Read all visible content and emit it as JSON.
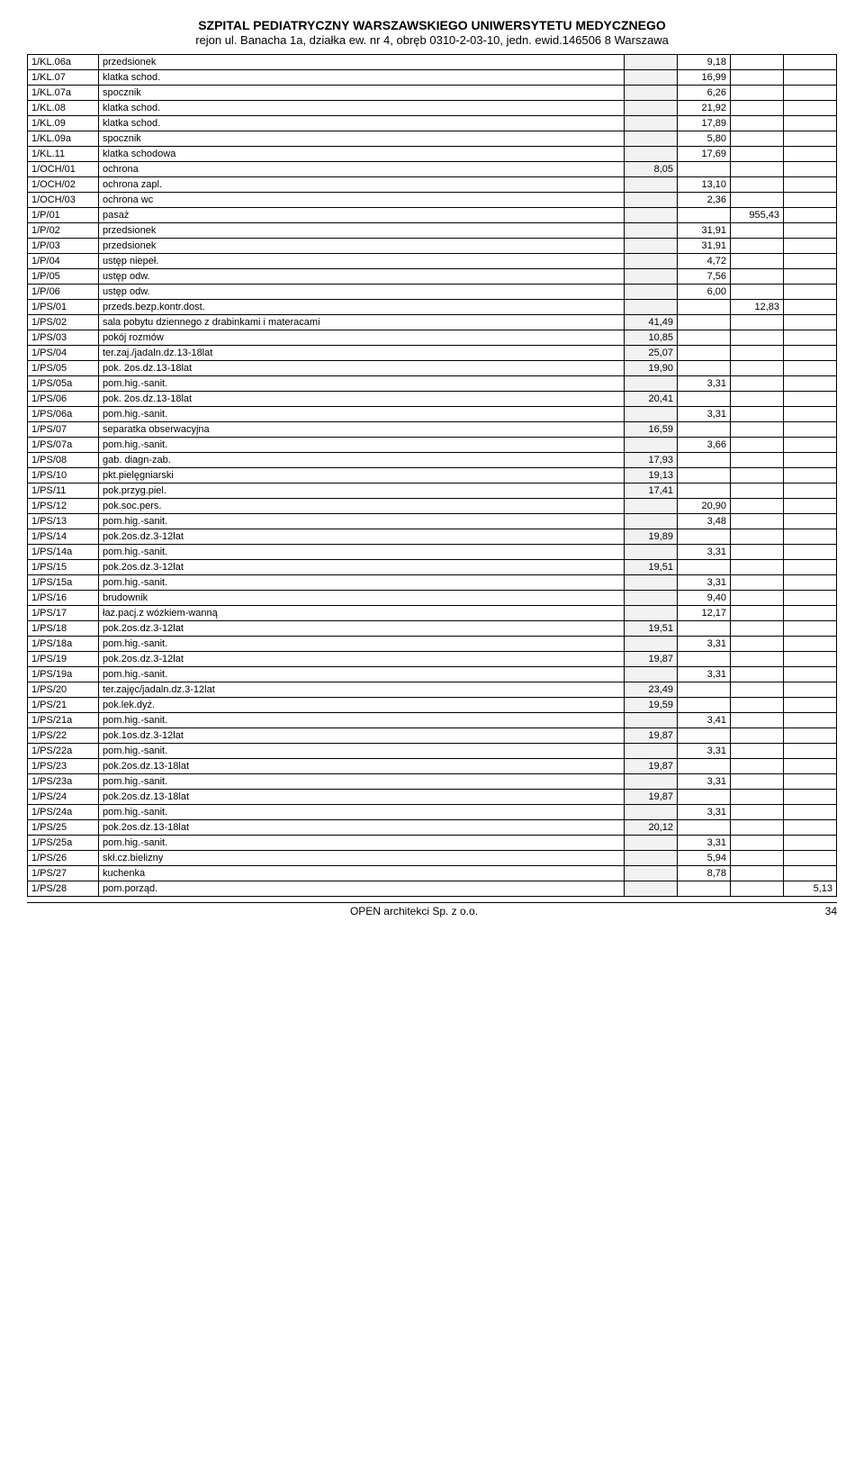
{
  "header": {
    "title": "SZPITAL PEDIATRYCZNY WARSZAWSKIEGO UNIWERSYTETU MEDYCZNEGO",
    "subtitle": "rejon ul. Banacha 1a, działka ew. nr 4, obręb 0310-2-03-10, jedn. ewid.146506 8 Warszawa"
  },
  "rows": [
    {
      "code": "1/KL.06a",
      "desc": "przedsionek",
      "v1": "",
      "v2": "9,18",
      "v3": "",
      "v4": ""
    },
    {
      "code": "1/KL.07",
      "desc": "klatka schod.",
      "v1": "",
      "v2": "16,99",
      "v3": "",
      "v4": ""
    },
    {
      "code": "1/KL.07a",
      "desc": "spocznik",
      "v1": "",
      "v2": "6,26",
      "v3": "",
      "v4": ""
    },
    {
      "code": "1/KL.08",
      "desc": "klatka schod.",
      "v1": "",
      "v2": "21,92",
      "v3": "",
      "v4": ""
    },
    {
      "code": "1/KL.09",
      "desc": "klatka schod.",
      "v1": "",
      "v2": "17,89",
      "v3": "",
      "v4": ""
    },
    {
      "code": "1/KL.09a",
      "desc": "spocznik",
      "v1": "",
      "v2": "5,80",
      "v3": "",
      "v4": ""
    },
    {
      "code": "1/KL.11",
      "desc": "klatka schodowa",
      "v1": "",
      "v2": "17,69",
      "v3": "",
      "v4": ""
    },
    {
      "code": "1/OCH/01",
      "desc": "ochrona",
      "v1": "8,05",
      "v2": "",
      "v3": "",
      "v4": ""
    },
    {
      "code": "1/OCH/02",
      "desc": "ochrona zapl.",
      "v1": "",
      "v2": "13,10",
      "v3": "",
      "v4": ""
    },
    {
      "code": "1/OCH/03",
      "desc": "ochrona wc",
      "v1": "",
      "v2": "2,36",
      "v3": "",
      "v4": ""
    },
    {
      "code": "1/P/01",
      "desc": "pasaż",
      "v1": "",
      "v2": "",
      "v3": "955,43",
      "v4": ""
    },
    {
      "code": "1/P/02",
      "desc": "przedsionek",
      "v1": "",
      "v2": "31,91",
      "v3": "",
      "v4": ""
    },
    {
      "code": "1/P/03",
      "desc": "przedsionek",
      "v1": "",
      "v2": "31,91",
      "v3": "",
      "v4": ""
    },
    {
      "code": "1/P/04",
      "desc": "ustęp niepeł.",
      "v1": "",
      "v2": "4,72",
      "v3": "",
      "v4": ""
    },
    {
      "code": "1/P/05",
      "desc": "ustęp odw.",
      "v1": "",
      "v2": "7,56",
      "v3": "",
      "v4": ""
    },
    {
      "code": "1/P/06",
      "desc": "ustęp odw.",
      "v1": "",
      "v2": "6,00",
      "v3": "",
      "v4": ""
    },
    {
      "code": "1/PS/01",
      "desc": "przeds.bezp.kontr.dost.",
      "v1": "",
      "v2": "",
      "v3": "12,83",
      "v4": ""
    },
    {
      "code": "1/PS/02",
      "desc": "sala pobytu dziennego z drabinkami i materacami",
      "v1": "41,49",
      "v2": "",
      "v3": "",
      "v4": ""
    },
    {
      "code": "1/PS/03",
      "desc": "pokój rozmów",
      "v1": "10,85",
      "v2": "",
      "v3": "",
      "v4": ""
    },
    {
      "code": "1/PS/04",
      "desc": "ter.zaj./jadaln.dz.13-18lat",
      "v1": "25,07",
      "v2": "",
      "v3": "",
      "v4": ""
    },
    {
      "code": "1/PS/05",
      "desc": "pok. 2os.dz.13-18lat",
      "v1": "19,90",
      "v2": "",
      "v3": "",
      "v4": ""
    },
    {
      "code": "1/PS/05a",
      "desc": "pom.hig.-sanit.",
      "v1": "",
      "v2": "3,31",
      "v3": "",
      "v4": ""
    },
    {
      "code": "1/PS/06",
      "desc": "pok. 2os.dz.13-18lat",
      "v1": "20,41",
      "v2": "",
      "v3": "",
      "v4": ""
    },
    {
      "code": "1/PS/06a",
      "desc": "pom.hig.-sanit.",
      "v1": "",
      "v2": "3,31",
      "v3": "",
      "v4": ""
    },
    {
      "code": "1/PS/07",
      "desc": "separatka obserwacyjna",
      "v1": "16,59",
      "v2": "",
      "v3": "",
      "v4": ""
    },
    {
      "code": "1/PS/07a",
      "desc": "pom.hig.-sanit.",
      "v1": "",
      "v2": "3,66",
      "v3": "",
      "v4": ""
    },
    {
      "code": "1/PS/08",
      "desc": "gab. diagn-zab.",
      "v1": "17,93",
      "v2": "",
      "v3": "",
      "v4": ""
    },
    {
      "code": "1/PS/10",
      "desc": "pkt.pielęgniarski",
      "v1": "19,13",
      "v2": "",
      "v3": "",
      "v4": ""
    },
    {
      "code": "1/PS/11",
      "desc": "pok.przyg.piel.",
      "v1": "17,41",
      "v2": "",
      "v3": "",
      "v4": ""
    },
    {
      "code": "1/PS/12",
      "desc": "pok.soc.pers.",
      "v1": "",
      "v2": "20,90",
      "v3": "",
      "v4": ""
    },
    {
      "code": "1/PS/13",
      "desc": "pom.hig.-sanit.",
      "v1": "",
      "v2": "3,48",
      "v3": "",
      "v4": ""
    },
    {
      "code": "1/PS/14",
      "desc": "pok.2os.dz.3-12lat",
      "v1": "19,89",
      "v2": "",
      "v3": "",
      "v4": ""
    },
    {
      "code": "1/PS/14a",
      "desc": "pom.hig.-sanit.",
      "v1": "",
      "v2": "3,31",
      "v3": "",
      "v4": ""
    },
    {
      "code": "1/PS/15",
      "desc": "pok.2os.dz.3-12lat",
      "v1": "19,51",
      "v2": "",
      "v3": "",
      "v4": ""
    },
    {
      "code": "1/PS/15a",
      "desc": "pom.hig.-sanit.",
      "v1": "",
      "v2": "3,31",
      "v3": "",
      "v4": ""
    },
    {
      "code": "1/PS/16",
      "desc": "brudownik",
      "v1": "",
      "v2": "9,40",
      "v3": "",
      "v4": ""
    },
    {
      "code": "1/PS/17",
      "desc": "łaz.pacj.z wózkiem-wanną",
      "v1": "",
      "v2": "12,17",
      "v3": "",
      "v4": ""
    },
    {
      "code": "1/PS/18",
      "desc": "pok.2os.dz.3-12lat",
      "v1": "19,51",
      "v2": "",
      "v3": "",
      "v4": ""
    },
    {
      "code": "1/PS/18a",
      "desc": "pom.hig.-sanit.",
      "v1": "",
      "v2": "3,31",
      "v3": "",
      "v4": ""
    },
    {
      "code": "1/PS/19",
      "desc": "pok.2os.dz.3-12lat",
      "v1": "19,87",
      "v2": "",
      "v3": "",
      "v4": ""
    },
    {
      "code": "1/PS/19a",
      "desc": "pom.hig.-sanit.",
      "v1": "",
      "v2": "3,31",
      "v3": "",
      "v4": ""
    },
    {
      "code": "1/PS/20",
      "desc": "ter.zajęc/jadaln.dz.3-12lat",
      "v1": "23,49",
      "v2": "",
      "v3": "",
      "v4": ""
    },
    {
      "code": "1/PS/21",
      "desc": "pok.lek.dyż.",
      "v1": "19,59",
      "v2": "",
      "v3": "",
      "v4": ""
    },
    {
      "code": "1/PS/21a",
      "desc": "pom.hig.-sanit.",
      "v1": "",
      "v2": "3,41",
      "v3": "",
      "v4": ""
    },
    {
      "code": "1/PS/22",
      "desc": "pok.1os.dz.3-12lat",
      "v1": "19,87",
      "v2": "",
      "v3": "",
      "v4": ""
    },
    {
      "code": "1/PS/22a",
      "desc": "pom.hig.-sanit.",
      "v1": "",
      "v2": "3,31",
      "v3": "",
      "v4": ""
    },
    {
      "code": "1/PS/23",
      "desc": "pok.2os.dz.13-18lat",
      "v1": "19,87",
      "v2": "",
      "v3": "",
      "v4": ""
    },
    {
      "code": "1/PS/23a",
      "desc": "pom.hig.-sanit.",
      "v1": "",
      "v2": "3,31",
      "v3": "",
      "v4": ""
    },
    {
      "code": "1/PS/24",
      "desc": "pok.2os.dz.13-18lat",
      "v1": "19,87",
      "v2": "",
      "v3": "",
      "v4": ""
    },
    {
      "code": "1/PS/24a",
      "desc": "pom.hig.-sanit.",
      "v1": "",
      "v2": "3,31",
      "v3": "",
      "v4": ""
    },
    {
      "code": "1/PS/25",
      "desc": "pok.2os.dz.13-18lat",
      "v1": "20,12",
      "v2": "",
      "v3": "",
      "v4": ""
    },
    {
      "code": "1/PS/25a",
      "desc": "pom.hig.-sanit.",
      "v1": "",
      "v2": "3,31",
      "v3": "",
      "v4": ""
    },
    {
      "code": "1/PS/26",
      "desc": "skł.cz.bielizny",
      "v1": "",
      "v2": "5,94",
      "v3": "",
      "v4": ""
    },
    {
      "code": "1/PS/27",
      "desc": "kuchenka",
      "v1": "",
      "v2": "8,78",
      "v3": "",
      "v4": ""
    },
    {
      "code": "1/PS/28",
      "desc": "pom.porząd.",
      "v1": "",
      "v2": "",
      "v3": "",
      "v4": "5,13"
    }
  ],
  "footer": {
    "company": "OPEN architekci Sp. z o.o.",
    "page": "34"
  }
}
